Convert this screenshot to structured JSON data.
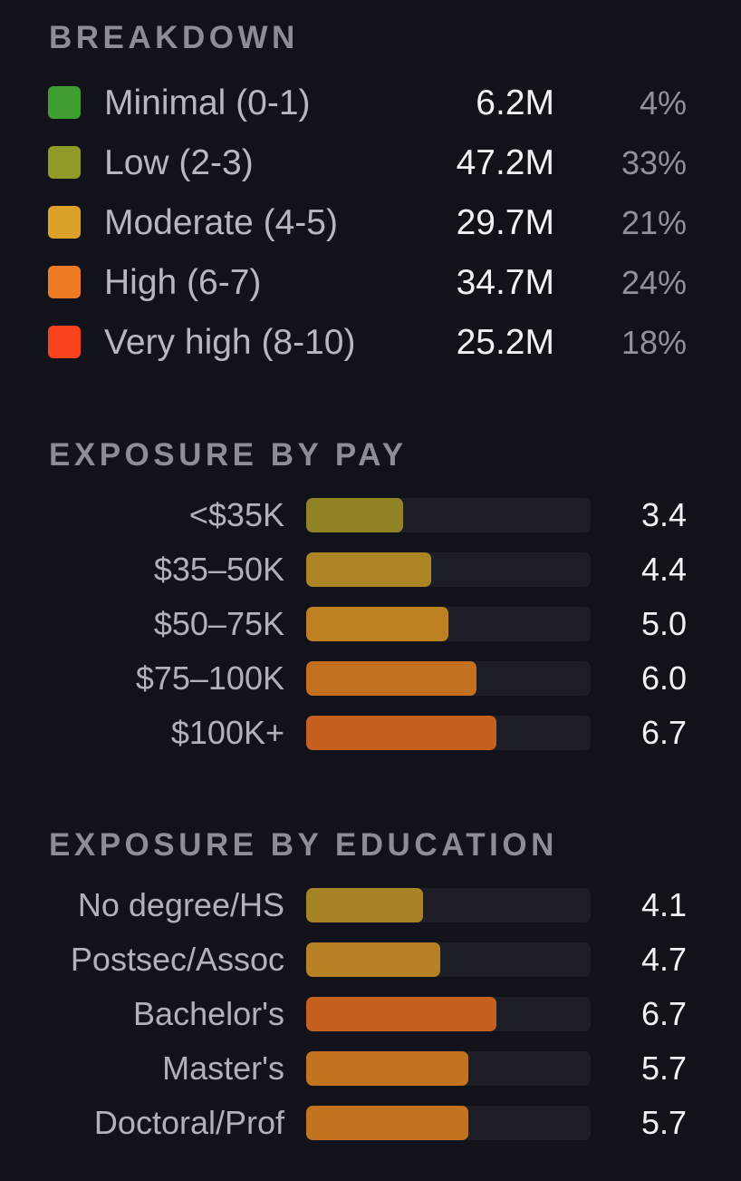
{
  "breakdown": {
    "title": "BREAKDOWN",
    "items": [
      {
        "label": "Minimal (0-1)",
        "count": "6.2M",
        "pct": "4%",
        "color": "#3f9e2f"
      },
      {
        "label": "Low (2-3)",
        "count": "47.2M",
        "pct": "33%",
        "color": "#8f9a27"
      },
      {
        "label": "Moderate (4-5)",
        "count": "29.7M",
        "pct": "21%",
        "color": "#dca12a"
      },
      {
        "label": "High (6-7)",
        "count": "34.7M",
        "pct": "24%",
        "color": "#ef7a24"
      },
      {
        "label": "Very high (8-10)",
        "count": "25.2M",
        "pct": "18%",
        "color": "#f8431d"
      }
    ]
  },
  "pay": {
    "title": "EXPOSURE BY PAY",
    "scale_max": 10,
    "items": [
      {
        "label": "<$35K",
        "value": "3.4",
        "score": 3.4,
        "color": "#918226"
      },
      {
        "label": "$35–50K",
        "value": "4.4",
        "score": 4.4,
        "color": "#ae8324"
      },
      {
        "label": "$50–75K",
        "value": "5.0",
        "score": 5.0,
        "color": "#bf8022"
      },
      {
        "label": "$75–100K",
        "value": "6.0",
        "score": 6.0,
        "color": "#c3701f"
      },
      {
        "label": "$100K+",
        "value": "6.7",
        "score": 6.7,
        "color": "#c65f1f"
      }
    ]
  },
  "education": {
    "title": "EXPOSURE BY EDUCATION",
    "scale_max": 10,
    "items": [
      {
        "label": "No degree/HS",
        "value": "4.1",
        "score": 4.1,
        "color": "#a68325"
      },
      {
        "label": "Postsec/Assoc",
        "value": "4.7",
        "score": 4.7,
        "color": "#b68224"
      },
      {
        "label": "Bachelor's",
        "value": "6.7",
        "score": 6.7,
        "color": "#c65f1f"
      },
      {
        "label": "Master's",
        "value": "5.7",
        "score": 5.7,
        "color": "#c2741f"
      },
      {
        "label": "Doctoral/Prof",
        "value": "5.7",
        "score": 5.7,
        "color": "#c2741f"
      }
    ]
  }
}
